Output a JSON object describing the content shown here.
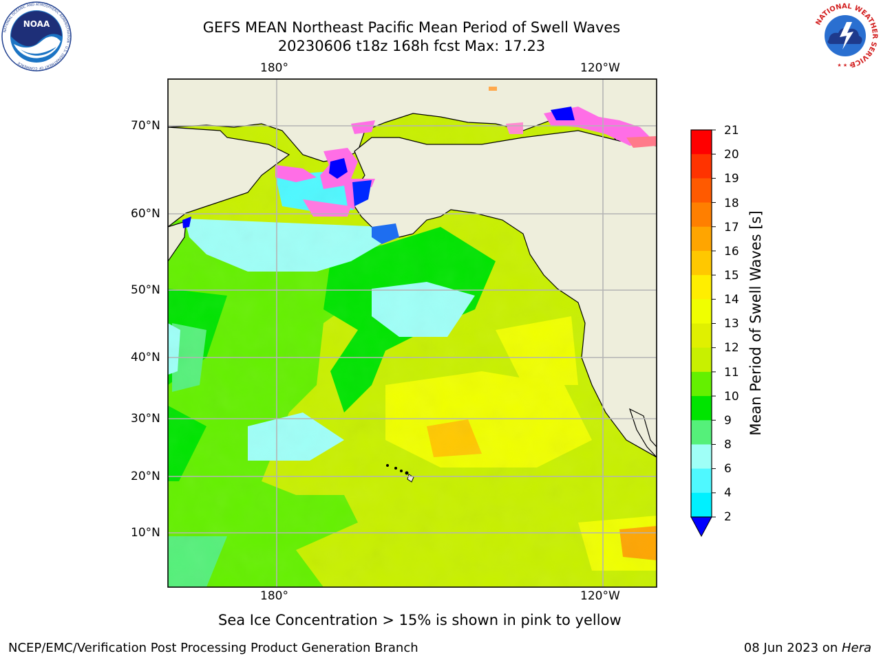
{
  "title": {
    "line1": "GEFS MEAN Northeast Pacific Mean Period of Swell Waves",
    "line2": "20230606 t18z 168h fcst   Max: 17.23"
  },
  "map": {
    "lon_labels_top": [
      "180°",
      "120°W"
    ],
    "lon_labels_bottom": [
      "180°",
      "120°W"
    ],
    "lat_labels": [
      "70°N",
      "60°N",
      "50°N",
      "40°N",
      "30°N",
      "20°N",
      "10°N"
    ],
    "land_color": "#eeeedc",
    "gridline_color": "#b4b4b4"
  },
  "colorbar": {
    "label": "Mean Period of Swell Waves [s]",
    "ticks": [
      "21",
      "20",
      "19",
      "18",
      "17",
      "16",
      "15",
      "14",
      "13",
      "12",
      "11",
      "10",
      "9",
      "8",
      "6",
      "4",
      "2"
    ],
    "colors": [
      "#ff0000",
      "#ff3300",
      "#ff5a00",
      "#ff7f00",
      "#ffa500",
      "#ffc800",
      "#ffee00",
      "#f0ff00",
      "#e0f000",
      "#c8f000",
      "#64f000",
      "#00e400",
      "#55f07a",
      "#9ffff7",
      "#4ff8ff",
      "#00f0ff",
      "#00c4ff",
      "#0078ff"
    ],
    "extend_color": "#0000ff"
  },
  "caption": "Sea Ice Concentration > 15% is shown in pink to yellow",
  "footer": {
    "left": "NCEP/EMC/Verification Post Processing Product Generation Branch",
    "right_prefix": "08 Jun 2023 on ",
    "right_machine": "Hera"
  },
  "logos": {
    "noaa_text": "NOAA",
    "noaa_ring_text": "NATIONAL OCEANIC AND ATMOSPHERIC ADMINISTRATION · U.S. DEPARTMENT OF COMMERCE",
    "nws_ring_text": "NATIONAL WEATHER SERVICE"
  }
}
